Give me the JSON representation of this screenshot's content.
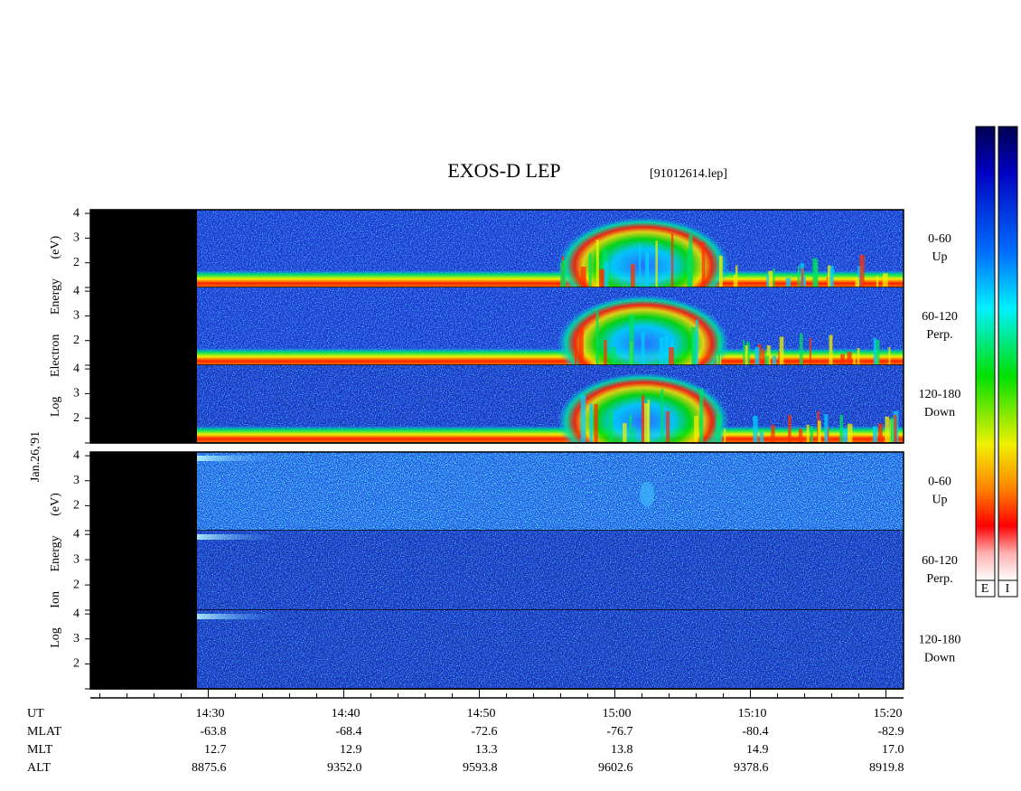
{
  "header": {
    "title": "EXOS-D LEP",
    "file": "[91012614.lep]",
    "date": "Jan.26,'91"
  },
  "panels": [
    {
      "ylabel": "Log Electron Energy (eV)",
      "channels": [
        {
          "range": "0-60",
          "direction": "Up"
        },
        {
          "range": "60-120",
          "direction": "Perp."
        },
        {
          "range": "120-180",
          "direction": "Down"
        }
      ]
    },
    {
      "ylabel": "Log Ion Energy (eV)",
      "channels": [
        {
          "range": "0-60",
          "direction": "Up"
        },
        {
          "range": "60-120",
          "direction": "Perp."
        },
        {
          "range": "120-180",
          "direction": "Down"
        }
      ]
    }
  ],
  "yaxis": {
    "lim": [
      1,
      4.15
    ],
    "ticks": [
      2,
      3,
      4
    ],
    "minor_ticks": [
      1
    ]
  },
  "time_axis": {
    "label": "UT",
    "lim": [
      861.3,
      921.3
    ],
    "ticks": [
      {
        "value": 870,
        "label": "14:30"
      },
      {
        "value": 880,
        "label": "14:40"
      },
      {
        "value": 890,
        "label": "14:50"
      },
      {
        "value": 900,
        "label": "15:00"
      },
      {
        "value": 910,
        "label": "15:10"
      },
      {
        "value": 920,
        "label": "15:20"
      }
    ],
    "minor_ticks": [
      862,
      864,
      866,
      868,
      872,
      874,
      876,
      878,
      882,
      884,
      886,
      888,
      892,
      894,
      896,
      898,
      902,
      904,
      906,
      908,
      912,
      914,
      916,
      918
    ]
  },
  "orbit_rows": [
    {
      "label": "MLAT",
      "values": [
        "-63.8",
        "-68.4",
        "-72.6",
        "-76.7",
        "-80.4",
        "-82.9"
      ]
    },
    {
      "label": "MLT",
      "values": [
        "12.7",
        "12.9",
        "13.3",
        "13.8",
        "14.9",
        "17.0"
      ]
    },
    {
      "label": "ALT",
      "values": [
        "8875.6",
        "9352.0",
        "9593.8",
        "9602.6",
        "9378.6",
        "8919.8"
      ]
    }
  ],
  "colorbar": {
    "labels": [
      "E",
      "I"
    ]
  }
}
